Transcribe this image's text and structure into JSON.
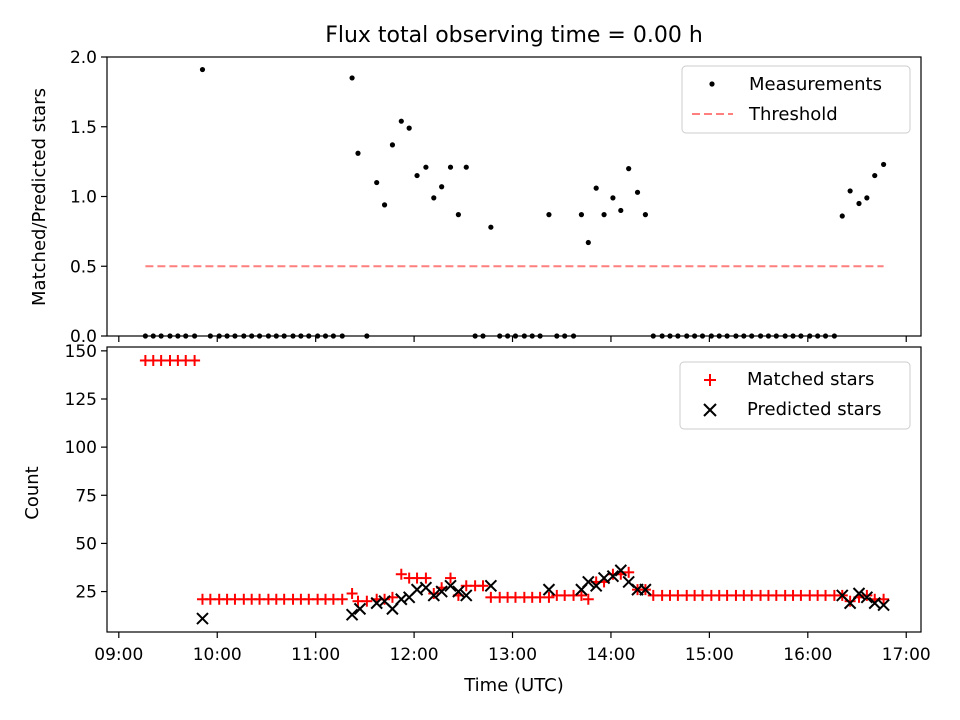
{
  "title": "Flux total observing time = 0.00 h",
  "chart_data": [
    {
      "type": "scatter",
      "panel": "top",
      "ylabel": "Matched/Predicted stars",
      "xlabel": "",
      "ylim": [
        0,
        2.0
      ],
      "yticks": [
        0.0,
        0.5,
        1.0,
        1.5,
        2.0
      ],
      "ytick_labels": [
        "0.0",
        "0.5",
        "1.0",
        "1.5",
        "2.0"
      ],
      "xlim_hours": [
        8.88,
        17.15
      ],
      "legend": {
        "position": "top-right",
        "entries": [
          "Measurements",
          "Threshold"
        ]
      },
      "series": [
        {
          "name": "Measurements",
          "color": "#000000",
          "marker": "dot",
          "x_hours": [
            9.27,
            9.35,
            9.43,
            9.52,
            9.6,
            9.68,
            9.77,
            9.85,
            9.93,
            10.02,
            10.1,
            10.18,
            10.27,
            10.35,
            10.43,
            10.52,
            10.6,
            10.68,
            10.77,
            10.85,
            10.93,
            11.02,
            11.1,
            11.18,
            11.27,
            11.37,
            11.43,
            11.52,
            11.62,
            11.7,
            11.78,
            11.87,
            11.95,
            12.03,
            12.12,
            12.2,
            12.28,
            12.37,
            12.45,
            12.53,
            12.62,
            12.7,
            12.78,
            12.87,
            12.95,
            13.03,
            13.12,
            13.2,
            13.28,
            13.37,
            13.45,
            13.53,
            13.62,
            13.7,
            13.77,
            13.85,
            13.93,
            14.02,
            14.1,
            14.18,
            14.27,
            14.35,
            14.43,
            14.52,
            14.6,
            14.68,
            14.77,
            14.85,
            14.93,
            15.02,
            15.1,
            15.18,
            15.27,
            15.35,
            15.43,
            15.52,
            15.6,
            15.68,
            15.77,
            15.85,
            15.93,
            16.02,
            16.1,
            16.18,
            16.27,
            16.35,
            16.43,
            16.52,
            16.6,
            16.68,
            16.77
          ],
          "y": [
            0,
            0,
            0,
            0,
            0,
            0,
            0,
            1.91,
            0,
            0,
            0,
            0,
            0,
            0,
            0,
            0,
            0,
            0,
            0,
            0,
            0,
            0,
            0,
            0,
            0,
            1.85,
            1.31,
            0,
            1.1,
            0.94,
            1.37,
            1.54,
            1.49,
            1.15,
            1.21,
            0.99,
            1.07,
            1.21,
            0.87,
            1.21,
            0,
            0,
            0.78,
            0,
            0,
            0,
            0,
            0,
            0,
            0.87,
            0,
            0,
            0,
            0.87,
            0.67,
            1.06,
            0.87,
            0.99,
            0.9,
            1.2,
            1.03,
            0.87,
            0,
            0,
            0,
            0,
            0,
            0,
            0,
            0,
            0,
            0,
            0,
            0,
            0,
            0,
            0,
            0,
            0,
            0,
            0,
            0,
            0,
            0,
            0,
            0.86,
            1.04,
            0.95,
            0.99,
            1.15,
            1.23
          ]
        },
        {
          "name": "Threshold",
          "color": "#ff7f7f",
          "style": "dashed",
          "x_hours": [
            9.27,
            16.77
          ],
          "y": [
            0.5,
            0.5
          ]
        }
      ]
    },
    {
      "type": "scatter",
      "panel": "bottom",
      "xlabel": "Time (UTC)",
      "ylabel": "Count",
      "ylim": [
        4,
        152
      ],
      "yticks": [
        25,
        50,
        75,
        100,
        125,
        150
      ],
      "ytick_labels": [
        "25",
        "50",
        "75",
        "100",
        "125",
        "150"
      ],
      "xlim_hours": [
        8.88,
        17.15
      ],
      "xticks_hours": [
        9,
        10,
        11,
        12,
        13,
        14,
        15,
        16,
        17
      ],
      "xtick_labels": [
        "09:00",
        "10:00",
        "11:00",
        "12:00",
        "13:00",
        "14:00",
        "15:00",
        "16:00",
        "17:00"
      ],
      "legend": {
        "position": "top-right",
        "entries": [
          "Matched stars",
          "Predicted stars"
        ]
      },
      "series": [
        {
          "name": "Matched stars",
          "color": "#ff0000",
          "marker": "plus",
          "x_hours": [
            9.27,
            9.35,
            9.43,
            9.52,
            9.6,
            9.68,
            9.77,
            9.85,
            9.93,
            10.02,
            10.1,
            10.18,
            10.27,
            10.35,
            10.43,
            10.52,
            10.6,
            10.68,
            10.77,
            10.85,
            10.93,
            11.02,
            11.1,
            11.18,
            11.27,
            11.37,
            11.43,
            11.52,
            11.62,
            11.7,
            11.78,
            11.87,
            11.95,
            12.03,
            12.12,
            12.2,
            12.28,
            12.37,
            12.45,
            12.53,
            12.62,
            12.7,
            12.78,
            12.87,
            12.95,
            13.03,
            13.12,
            13.2,
            13.28,
            13.37,
            13.45,
            13.53,
            13.62,
            13.7,
            13.77,
            13.85,
            13.93,
            14.02,
            14.1,
            14.18,
            14.27,
            14.35,
            14.43,
            14.52,
            14.6,
            14.68,
            14.77,
            14.85,
            14.93,
            15.02,
            15.1,
            15.18,
            15.27,
            15.35,
            15.43,
            15.52,
            15.6,
            15.68,
            15.77,
            15.85,
            15.93,
            16.02,
            16.1,
            16.18,
            16.27,
            16.35,
            16.43,
            16.52,
            16.6,
            16.68,
            16.77
          ],
          "y": [
            145,
            145,
            145,
            145,
            145,
            145,
            145,
            21,
            21,
            21,
            21,
            21,
            21,
            21,
            21,
            21,
            21,
            21,
            21,
            21,
            21,
            21,
            21,
            21,
            21,
            24,
            20,
            20,
            21,
            21,
            22,
            34,
            32,
            32,
            32,
            24,
            27,
            32,
            23,
            28,
            28,
            28,
            22,
            22,
            22,
            22,
            22,
            22,
            22,
            22,
            23,
            23,
            23,
            23,
            21,
            30,
            30,
            34,
            34,
            35,
            26,
            26,
            23,
            23,
            23,
            23,
            23,
            23,
            23,
            23,
            23,
            23,
            23,
            23,
            23,
            23,
            23,
            23,
            23,
            23,
            23,
            23,
            23,
            23,
            23,
            23,
            20,
            22,
            23,
            21,
            21
          ]
        },
        {
          "name": "Predicted stars",
          "color": "#000000",
          "marker": "x",
          "x_hours": [
            9.85,
            11.37,
            11.45,
            11.62,
            11.7,
            11.78,
            11.87,
            11.95,
            12.03,
            12.12,
            12.2,
            12.28,
            12.37,
            12.45,
            12.53,
            12.78,
            13.37,
            13.7,
            13.77,
            13.85,
            13.93,
            14.02,
            14.1,
            14.18,
            14.27,
            14.35,
            16.35,
            16.43,
            16.52,
            16.6,
            16.68,
            16.77
          ],
          "y": [
            11,
            13,
            16,
            19,
            20,
            16,
            21,
            22,
            26,
            27,
            23,
            25,
            28,
            25,
            23,
            28,
            26,
            26,
            30,
            28,
            32,
            33,
            36,
            30,
            26,
            26,
            23,
            19,
            24,
            22,
            19,
            18
          ]
        }
      ]
    }
  ]
}
